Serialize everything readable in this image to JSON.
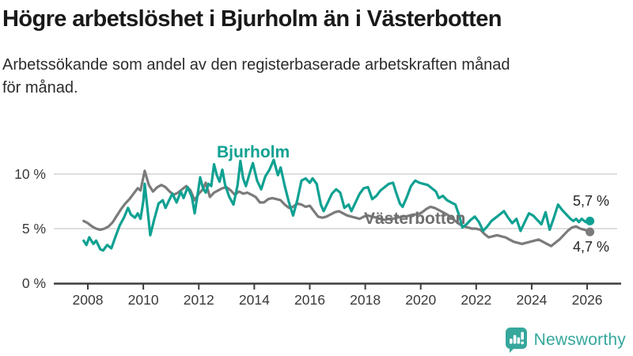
{
  "header": {
    "title": "Högre arbetslöshet i Bjurholm än i Västerbotten",
    "subtitle_line1": "Arbetssökande som andel av den registerbaserade arbetskraften månad",
    "subtitle_line2": "för månad."
  },
  "labels": {
    "bjurholm": "Bjurholm",
    "vasterbotten": "Västerbotten",
    "end_top": "5,7 %",
    "end_bottom": "4,7 %"
  },
  "footer": {
    "brand": "Newsworthy"
  },
  "colors": {
    "bjurholm": "#0fa192",
    "vasterbotten": "#7b7b7b",
    "axis": "#3d3d3d",
    "tick_text": "#3a3a3a",
    "gridline": "#dadada",
    "brand_teal": "#35a79c"
  },
  "chart_data": {
    "type": "line",
    "title": "Högre arbetslöshet i Bjurholm än i Västerbotten",
    "subtitle": "Arbetssökande som andel av den registerbaserade arbetskraften månad för månad.",
    "unit": "%",
    "xlabel": "",
    "ylabel": "",
    "ylim": [
      0,
      11.6
    ],
    "xlim": [
      2007.8,
      2026.3
    ],
    "grid": "horizontal",
    "x_ticks": [
      2008,
      2010,
      2012,
      2014,
      2016,
      2018,
      2020,
      2022,
      2024,
      2026
    ],
    "y_ticks": [
      {
        "v": 0,
        "label": "0 %"
      },
      {
        "v": 5,
        "label": "5 %"
      },
      {
        "v": 10,
        "label": "10 %"
      }
    ],
    "series": [
      {
        "name": "Bjurholm",
        "color": "#0fa192",
        "end_label": "5,7 %",
        "end_value": 5.7,
        "points": [
          [
            2007.85,
            3.9
          ],
          [
            2007.95,
            3.5
          ],
          [
            2008.05,
            4.2
          ],
          [
            2008.2,
            3.6
          ],
          [
            2008.3,
            3.9
          ],
          [
            2008.45,
            3.1
          ],
          [
            2008.55,
            3.0
          ],
          [
            2008.7,
            3.5
          ],
          [
            2008.85,
            3.2
          ],
          [
            2009.0,
            4.3
          ],
          [
            2009.15,
            5.3
          ],
          [
            2009.3,
            6.0
          ],
          [
            2009.45,
            6.9
          ],
          [
            2009.55,
            6.3
          ],
          [
            2009.7,
            6.0
          ],
          [
            2009.8,
            6.4
          ],
          [
            2009.9,
            5.9
          ],
          [
            2010.0,
            7.5
          ],
          [
            2010.05,
            9.1
          ],
          [
            2010.15,
            6.8
          ],
          [
            2010.25,
            4.4
          ],
          [
            2010.4,
            5.9
          ],
          [
            2010.55,
            7.3
          ],
          [
            2010.7,
            7.6
          ],
          [
            2010.8,
            6.9
          ],
          [
            2010.95,
            7.7
          ],
          [
            2011.05,
            8.2
          ],
          [
            2011.2,
            7.4
          ],
          [
            2011.35,
            8.4
          ],
          [
            2011.45,
            7.8
          ],
          [
            2011.6,
            8.8
          ],
          [
            2011.75,
            7.9
          ],
          [
            2011.85,
            6.4
          ],
          [
            2011.95,
            8.0
          ],
          [
            2012.05,
            9.7
          ],
          [
            2012.15,
            8.7
          ],
          [
            2012.25,
            8.3
          ],
          [
            2012.35,
            9.1
          ],
          [
            2012.45,
            8.9
          ],
          [
            2012.55,
            10.9
          ],
          [
            2012.65,
            9.9
          ],
          [
            2012.75,
            9.3
          ],
          [
            2012.85,
            10.4
          ],
          [
            2012.95,
            9.0
          ],
          [
            2013.1,
            7.9
          ],
          [
            2013.25,
            7.2
          ],
          [
            2013.4,
            9.0
          ],
          [
            2013.5,
            11.2
          ],
          [
            2013.6,
            9.6
          ],
          [
            2013.7,
            8.9
          ],
          [
            2013.85,
            10.2
          ],
          [
            2013.95,
            11.0
          ],
          [
            2014.1,
            9.4
          ],
          [
            2014.25,
            8.6
          ],
          [
            2014.4,
            9.8
          ],
          [
            2014.55,
            10.4
          ],
          [
            2014.7,
            11.3
          ],
          [
            2014.85,
            9.9
          ],
          [
            2014.95,
            10.6
          ],
          [
            2015.1,
            8.9
          ],
          [
            2015.25,
            7.4
          ],
          [
            2015.4,
            6.2
          ],
          [
            2015.55,
            7.6
          ],
          [
            2015.7,
            9.4
          ],
          [
            2015.85,
            9.6
          ],
          [
            2016.0,
            9.2
          ],
          [
            2016.1,
            9.6
          ],
          [
            2016.25,
            9.1
          ],
          [
            2016.4,
            7.2
          ],
          [
            2016.5,
            6.6
          ],
          [
            2016.65,
            7.4
          ],
          [
            2016.8,
            8.2
          ],
          [
            2016.95,
            8.6
          ],
          [
            2017.1,
            8.3
          ],
          [
            2017.25,
            6.9
          ],
          [
            2017.4,
            7.2
          ],
          [
            2017.5,
            6.6
          ],
          [
            2017.65,
            7.4
          ],
          [
            2017.8,
            8.2
          ],
          [
            2017.95,
            8.7
          ],
          [
            2018.1,
            8.8
          ],
          [
            2018.25,
            7.7
          ],
          [
            2018.4,
            8.0
          ],
          [
            2018.55,
            8.5
          ],
          [
            2018.7,
            8.8
          ],
          [
            2018.85,
            9.1
          ],
          [
            2019.0,
            9.2
          ],
          [
            2019.1,
            8.4
          ],
          [
            2019.25,
            7.3
          ],
          [
            2019.35,
            7.0
          ],
          [
            2019.5,
            7.9
          ],
          [
            2019.65,
            8.9
          ],
          [
            2019.8,
            9.4
          ],
          [
            2019.95,
            9.2
          ],
          [
            2020.1,
            9.1
          ],
          [
            2020.25,
            9.0
          ],
          [
            2020.4,
            8.7
          ],
          [
            2020.55,
            8.4
          ],
          [
            2020.65,
            7.8
          ],
          [
            2020.8,
            8.0
          ],
          [
            2020.95,
            7.6
          ],
          [
            2021.1,
            7.4
          ],
          [
            2021.25,
            7.2
          ],
          [
            2021.4,
            6.1
          ],
          [
            2021.5,
            5.1
          ],
          [
            2021.65,
            5.4
          ],
          [
            2021.8,
            5.8
          ],
          [
            2021.95,
            6.1
          ],
          [
            2022.1,
            5.6
          ],
          [
            2022.25,
            4.8
          ],
          [
            2022.4,
            5.2
          ],
          [
            2022.55,
            5.7
          ],
          [
            2022.7,
            6.0
          ],
          [
            2022.85,
            6.3
          ],
          [
            2023.0,
            6.6
          ],
          [
            2023.15,
            6.0
          ],
          [
            2023.3,
            5.5
          ],
          [
            2023.45,
            5.9
          ],
          [
            2023.6,
            4.8
          ],
          [
            2023.75,
            5.6
          ],
          [
            2023.9,
            6.4
          ],
          [
            2024.05,
            6.2
          ],
          [
            2024.2,
            5.8
          ],
          [
            2024.35,
            5.4
          ],
          [
            2024.5,
            6.5
          ],
          [
            2024.65,
            4.9
          ],
          [
            2024.8,
            6.0
          ],
          [
            2024.95,
            7.2
          ],
          [
            2025.1,
            6.7
          ],
          [
            2025.25,
            6.3
          ],
          [
            2025.4,
            5.9
          ],
          [
            2025.5,
            5.7
          ],
          [
            2025.6,
            5.9
          ],
          [
            2025.7,
            5.6
          ],
          [
            2025.8,
            5.9
          ],
          [
            2025.95,
            5.6
          ],
          [
            2026.1,
            5.7
          ]
        ]
      },
      {
        "name": "Västerbotten",
        "color": "#7b7b7b",
        "end_label": "4,7 %",
        "end_value": 4.7,
        "points": [
          [
            2007.85,
            5.7
          ],
          [
            2008.0,
            5.5
          ],
          [
            2008.15,
            5.2
          ],
          [
            2008.3,
            5.0
          ],
          [
            2008.45,
            4.9
          ],
          [
            2008.6,
            5.0
          ],
          [
            2008.75,
            5.2
          ],
          [
            2008.9,
            5.6
          ],
          [
            2009.05,
            6.2
          ],
          [
            2009.2,
            6.8
          ],
          [
            2009.35,
            7.3
          ],
          [
            2009.5,
            7.7
          ],
          [
            2009.65,
            8.2
          ],
          [
            2009.8,
            8.7
          ],
          [
            2009.9,
            8.5
          ],
          [
            2010.05,
            10.3
          ],
          [
            2010.2,
            9.0
          ],
          [
            2010.35,
            8.4
          ],
          [
            2010.5,
            8.8
          ],
          [
            2010.65,
            9.0
          ],
          [
            2010.8,
            8.8
          ],
          [
            2010.95,
            8.4
          ],
          [
            2011.1,
            8.1
          ],
          [
            2011.25,
            8.3
          ],
          [
            2011.4,
            8.6
          ],
          [
            2011.55,
            8.9
          ],
          [
            2011.7,
            8.5
          ],
          [
            2011.85,
            7.6
          ],
          [
            2012.0,
            8.2
          ],
          [
            2012.15,
            8.6
          ],
          [
            2012.25,
            9.2
          ],
          [
            2012.4,
            7.9
          ],
          [
            2012.55,
            8.3
          ],
          [
            2012.7,
            8.5
          ],
          [
            2012.85,
            8.7
          ],
          [
            2013.0,
            8.8
          ],
          [
            2013.15,
            8.5
          ],
          [
            2013.3,
            8.1
          ],
          [
            2013.45,
            8.4
          ],
          [
            2013.6,
            8.2
          ],
          [
            2013.75,
            8.3
          ],
          [
            2013.9,
            8.1
          ],
          [
            2014.05,
            7.9
          ],
          [
            2014.2,
            7.4
          ],
          [
            2014.35,
            7.4
          ],
          [
            2014.5,
            7.7
          ],
          [
            2014.65,
            7.8
          ],
          [
            2014.8,
            7.7
          ],
          [
            2014.95,
            7.6
          ],
          [
            2015.1,
            7.2
          ],
          [
            2015.25,
            6.9
          ],
          [
            2015.4,
            7.0
          ],
          [
            2015.55,
            7.3
          ],
          [
            2015.7,
            7.2
          ],
          [
            2015.85,
            7.0
          ],
          [
            2016.0,
            7.1
          ],
          [
            2016.15,
            6.6
          ],
          [
            2016.3,
            6.1
          ],
          [
            2016.45,
            6.0
          ],
          [
            2016.6,
            6.1
          ],
          [
            2016.75,
            6.3
          ],
          [
            2016.9,
            6.5
          ],
          [
            2017.05,
            6.6
          ],
          [
            2017.2,
            6.4
          ],
          [
            2017.35,
            6.2
          ],
          [
            2017.5,
            6.1
          ],
          [
            2017.65,
            6.0
          ],
          [
            2017.8,
            5.9
          ],
          [
            2017.95,
            6.1
          ],
          [
            2018.1,
            6.2
          ],
          [
            2018.25,
            6.1
          ],
          [
            2018.4,
            6.0
          ],
          [
            2018.55,
            5.9
          ],
          [
            2018.7,
            5.8
          ],
          [
            2018.85,
            5.9
          ],
          [
            2019.0,
            5.9
          ],
          [
            2019.15,
            6.0
          ],
          [
            2019.3,
            6.1
          ],
          [
            2019.45,
            6.1
          ],
          [
            2019.6,
            6.2
          ],
          [
            2019.75,
            6.3
          ],
          [
            2019.9,
            6.3
          ],
          [
            2020.05,
            6.5
          ],
          [
            2020.2,
            6.8
          ],
          [
            2020.35,
            7.0
          ],
          [
            2020.5,
            6.9
          ],
          [
            2020.65,
            6.7
          ],
          [
            2020.8,
            6.5
          ],
          [
            2020.95,
            6.3
          ],
          [
            2021.1,
            6.0
          ],
          [
            2021.25,
            5.7
          ],
          [
            2021.4,
            5.4
          ],
          [
            2021.55,
            5.2
          ],
          [
            2021.7,
            5.1
          ],
          [
            2021.85,
            5.0
          ],
          [
            2022.0,
            5.0
          ],
          [
            2022.15,
            4.9
          ],
          [
            2022.3,
            4.5
          ],
          [
            2022.45,
            4.2
          ],
          [
            2022.6,
            4.3
          ],
          [
            2022.75,
            4.4
          ],
          [
            2022.9,
            4.3
          ],
          [
            2023.05,
            4.2
          ],
          [
            2023.2,
            4.0
          ],
          [
            2023.35,
            3.8
          ],
          [
            2023.5,
            3.7
          ],
          [
            2023.65,
            3.6
          ],
          [
            2023.8,
            3.7
          ],
          [
            2023.95,
            3.8
          ],
          [
            2024.1,
            3.9
          ],
          [
            2024.25,
            4.0
          ],
          [
            2024.4,
            3.8
          ],
          [
            2024.55,
            3.6
          ],
          [
            2024.7,
            3.4
          ],
          [
            2024.85,
            3.7
          ],
          [
            2025.0,
            4.0
          ],
          [
            2025.15,
            4.4
          ],
          [
            2025.3,
            4.8
          ],
          [
            2025.45,
            5.1
          ],
          [
            2025.6,
            5.2
          ],
          [
            2025.75,
            5.0
          ],
          [
            2025.9,
            4.9
          ],
          [
            2026.1,
            4.7
          ]
        ]
      }
    ],
    "legend_position": "inline-labels"
  }
}
